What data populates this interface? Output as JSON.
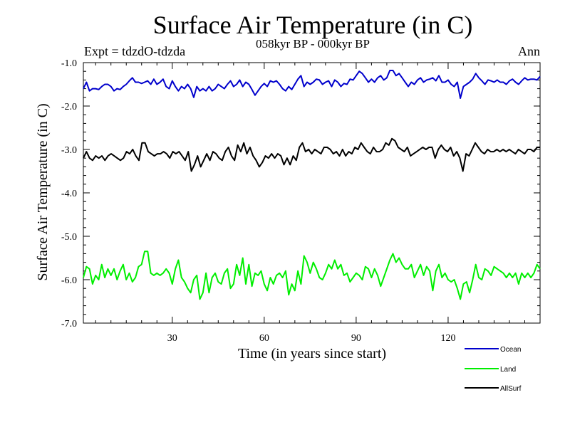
{
  "chart_data": {
    "type": "line",
    "title": "Surface Air Temperature (in C)",
    "subtitle": "058kyr BP - 000kyr BP",
    "experiment": "Expt = tdzdO-tdzda",
    "season": "Ann",
    "xlabel": "Time (in years since start)",
    "ylabel": "Surface Air Temperature (in C)",
    "xlim": [
      1,
      150
    ],
    "ylim": [
      -7.0,
      -1.0
    ],
    "xticks": [
      30,
      60,
      90,
      120
    ],
    "xtick_labels": [
      "30",
      "60",
      "90",
      "120"
    ],
    "yticks": [
      -1.0,
      -2.0,
      -3.0,
      -4.0,
      -5.0,
      -6.0,
      -7.0
    ],
    "ytick_labels": [
      "-1.0",
      "-2.0",
      "-3.0",
      "-4.0",
      "-5.0",
      "-6.0",
      "-7.0"
    ],
    "legend_position": "bottom-right",
    "series": [
      {
        "name": "Ocean",
        "color": "#0000cc",
        "values": [
          -1.6,
          -1.45,
          -1.65,
          -1.6,
          -1.6,
          -1.62,
          -1.55,
          -1.5,
          -1.5,
          -1.55,
          -1.65,
          -1.6,
          -1.62,
          -1.55,
          -1.5,
          -1.42,
          -1.35,
          -1.45,
          -1.45,
          -1.48,
          -1.45,
          -1.42,
          -1.5,
          -1.38,
          -1.5,
          -1.45,
          -1.38,
          -1.55,
          -1.6,
          -1.42,
          -1.55,
          -1.65,
          -1.55,
          -1.6,
          -1.5,
          -1.6,
          -1.8,
          -1.55,
          -1.65,
          -1.6,
          -1.65,
          -1.55,
          -1.65,
          -1.6,
          -1.5,
          -1.55,
          -1.6,
          -1.5,
          -1.42,
          -1.55,
          -1.5,
          -1.4,
          -1.55,
          -1.45,
          -1.5,
          -1.62,
          -1.75,
          -1.65,
          -1.55,
          -1.48,
          -1.55,
          -1.42,
          -1.45,
          -1.42,
          -1.5,
          -1.6,
          -1.65,
          -1.55,
          -1.62,
          -1.5,
          -1.38,
          -1.3,
          -1.55,
          -1.45,
          -1.5,
          -1.45,
          -1.38,
          -1.4,
          -1.5,
          -1.45,
          -1.42,
          -1.55,
          -1.4,
          -1.45,
          -1.55,
          -1.48,
          -1.5,
          -1.38,
          -1.4,
          -1.3,
          -1.2,
          -1.25,
          -1.35,
          -1.45,
          -1.38,
          -1.45,
          -1.35,
          -1.3,
          -1.4,
          -1.35,
          -1.18,
          -1.18,
          -1.3,
          -1.25,
          -1.35,
          -1.45,
          -1.55,
          -1.45,
          -1.5,
          -1.4,
          -1.35,
          -1.45,
          -1.4,
          -1.38,
          -1.35,
          -1.42,
          -1.3,
          -1.45,
          -1.45,
          -1.4,
          -1.5,
          -1.55,
          -1.45,
          -1.82,
          -1.55,
          -1.5,
          -1.45,
          -1.38,
          -1.25,
          -1.35,
          -1.42,
          -1.5,
          -1.4,
          -1.42,
          -1.45,
          -1.4,
          -1.45,
          -1.45,
          -1.5,
          -1.42,
          -1.38,
          -1.45,
          -1.5,
          -1.42,
          -1.35,
          -1.4,
          -1.38,
          -1.38,
          -1.4,
          -1.32
        ]
      },
      {
        "name": "Land",
        "color": "#00ee00",
        "values": [
          -5.95,
          -5.7,
          -5.75,
          -6.1,
          -5.9,
          -6.0,
          -5.65,
          -5.95,
          -5.75,
          -5.9,
          -5.75,
          -6.0,
          -5.8,
          -5.65,
          -6.0,
          -5.85,
          -6.05,
          -5.95,
          -5.7,
          -5.65,
          -5.35,
          -5.35,
          -5.85,
          -5.9,
          -5.85,
          -5.9,
          -5.85,
          -5.75,
          -5.85,
          -6.1,
          -5.75,
          -5.55,
          -5.95,
          -6.05,
          -6.2,
          -6.3,
          -6.0,
          -5.9,
          -6.45,
          -6.3,
          -5.85,
          -6.3,
          -5.95,
          -5.85,
          -6.05,
          -6.1,
          -5.85,
          -5.75,
          -6.2,
          -6.1,
          -5.65,
          -5.9,
          -5.5,
          -6.1,
          -5.65,
          -6.15,
          -5.85,
          -5.9,
          -5.8,
          -6.1,
          -6.25,
          -5.95,
          -6.1,
          -5.9,
          -5.85,
          -5.95,
          -5.8,
          -6.35,
          -6.1,
          -6.25,
          -5.8,
          -6.1,
          -5.45,
          -5.6,
          -5.85,
          -5.6,
          -5.75,
          -5.95,
          -6.0,
          -5.85,
          -5.65,
          -5.75,
          -5.55,
          -5.75,
          -5.65,
          -5.9,
          -5.85,
          -6.05,
          -5.95,
          -5.85,
          -5.9,
          -6.0,
          -5.7,
          -5.75,
          -5.95,
          -5.75,
          -5.9,
          -6.15,
          -5.95,
          -5.75,
          -5.55,
          -5.4,
          -5.6,
          -5.5,
          -5.65,
          -5.75,
          -5.75,
          -5.65,
          -5.95,
          -5.8,
          -5.65,
          -5.9,
          -5.7,
          -5.8,
          -6.25,
          -5.8,
          -5.65,
          -5.95,
          -5.85,
          -6.0,
          -6.05,
          -6.0,
          -6.2,
          -6.45,
          -6.1,
          -6.05,
          -6.3,
          -6.0,
          -5.65,
          -5.95,
          -6.0,
          -5.75,
          -5.8,
          -5.9,
          -5.7,
          -5.75,
          -5.8,
          -5.85,
          -5.95,
          -5.85,
          -5.95,
          -5.85,
          -6.1,
          -5.85,
          -5.95,
          -5.85,
          -5.95,
          -5.85,
          -5.65,
          -5.75
        ]
      },
      {
        "name": "AllSurf",
        "color": "#000000",
        "values": [
          -3.2,
          -3.05,
          -3.2,
          -3.25,
          -3.15,
          -3.2,
          -3.15,
          -3.25,
          -3.15,
          -3.1,
          -3.15,
          -3.2,
          -3.25,
          -3.2,
          -3.05,
          -3.1,
          -3.0,
          -3.15,
          -3.25,
          -2.85,
          -2.85,
          -3.05,
          -3.1,
          -3.15,
          -3.1,
          -3.1,
          -3.05,
          -3.1,
          -3.2,
          -3.05,
          -3.1,
          -3.05,
          -3.15,
          -3.25,
          -3.05,
          -3.5,
          -3.35,
          -3.15,
          -3.4,
          -3.25,
          -3.1,
          -3.25,
          -3.05,
          -3.1,
          -3.2,
          -3.25,
          -3.05,
          -2.95,
          -3.15,
          -3.25,
          -2.9,
          -3.05,
          -2.85,
          -3.1,
          -2.95,
          -3.15,
          -3.25,
          -3.4,
          -3.3,
          -3.15,
          -3.2,
          -3.1,
          -3.2,
          -3.1,
          -3.15,
          -3.35,
          -3.2,
          -3.35,
          -3.15,
          -3.25,
          -2.95,
          -2.85,
          -3.05,
          -3.0,
          -3.1,
          -3.0,
          -3.05,
          -3.1,
          -2.95,
          -2.95,
          -3.0,
          -3.1,
          -3.05,
          -3.15,
          -3.0,
          -3.15,
          -3.05,
          -3.1,
          -2.95,
          -3.0,
          -2.85,
          -2.95,
          -3.05,
          -3.1,
          -2.95,
          -3.05,
          -3.05,
          -3.0,
          -2.85,
          -2.9,
          -2.75,
          -2.8,
          -2.95,
          -3.0,
          -3.05,
          -2.95,
          -3.15,
          -3.1,
          -3.05,
          -3.0,
          -2.95,
          -3.0,
          -2.95,
          -2.95,
          -3.2,
          -3.0,
          -2.9,
          -3.0,
          -3.05,
          -2.95,
          -3.15,
          -3.05,
          -3.2,
          -3.5,
          -3.1,
          -3.15,
          -3.0,
          -2.85,
          -2.95,
          -3.05,
          -3.1,
          -3.0,
          -3.05,
          -3.05,
          -3.0,
          -3.05,
          -3.0,
          -3.05,
          -3.0,
          -3.05,
          -3.1,
          -3.0,
          -3.05,
          -3.1,
          -3.0,
          -3.0,
          -3.05,
          -2.95,
          -2.95
        ]
      }
    ]
  }
}
